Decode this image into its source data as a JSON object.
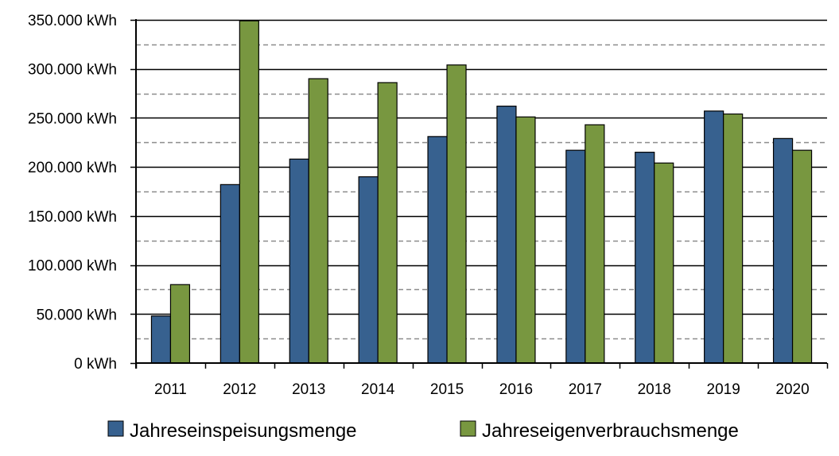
{
  "chart_data": {
    "type": "bar",
    "categories": [
      "2011",
      "2012",
      "2013",
      "2014",
      "2015",
      "2016",
      "2017",
      "2018",
      "2019",
      "2020"
    ],
    "series": [
      {
        "name": "Jahreseinspeisungsmenge",
        "color": "#37618f",
        "values": [
          48000,
          182000,
          208000,
          190000,
          231000,
          262000,
          217000,
          215000,
          257000,
          229000
        ]
      },
      {
        "name": "Jahreseigenverbrauchsmenge",
        "color": "#789740",
        "values": [
          80000,
          349000,
          290000,
          286000,
          304000,
          251000,
          243000,
          204000,
          254000,
          217000
        ]
      }
    ],
    "ylim": [
      0,
      350000
    ],
    "yticks": [
      0,
      50000,
      100000,
      150000,
      200000,
      250000,
      300000,
      350000
    ],
    "ytick_labels": [
      "0 kWh",
      "50.000 kWh",
      "100.000 kWh",
      "150.000 kWh",
      "200.000 kWh",
      "250.000 kWh",
      "300.000 kWh",
      "350.000 kWh"
    ],
    "minor_gridlines": [
      25000,
      75000,
      125000,
      175000,
      225000,
      275000,
      325000
    ],
    "title": "",
    "xlabel": "",
    "ylabel": "",
    "legend_position": "bottom",
    "grid": true
  }
}
